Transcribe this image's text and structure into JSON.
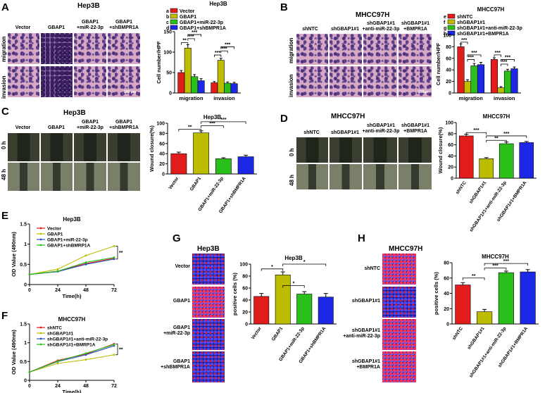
{
  "panels": {
    "A": {
      "letter": "A",
      "title": "Hep3B",
      "cols": [
        "Vector",
        "GBAP1",
        "GBAP1\n+miR-22-3p",
        "GBAP1\n+shBMPR1A"
      ],
      "rows": [
        "migration",
        "invasion"
      ],
      "scale": "100 μm"
    },
    "B": {
      "letter": "B",
      "title": "MHCC97H",
      "cols": [
        "shNTC",
        "shGBAP1#1",
        "shGBAP1#1\n+anti-miR-22-3p",
        "shGBAP1#1\n+BMPR1A"
      ],
      "rows": [
        "migration",
        "invasion"
      ],
      "scale": "100μm"
    },
    "C": {
      "letter": "C",
      "title": "Hep3B",
      "cols": [
        "Vector",
        "GBAP1",
        "GBAP1\n+miR-22-3p",
        "GBAP1\n+shBMPR1A"
      ],
      "rows": [
        "0 h",
        "48 h"
      ]
    },
    "D": {
      "letter": "D",
      "title": "MHCC97H",
      "cols": [
        "shNTC",
        "shGBAP1#1",
        "shGBAP1#1\n+anti-miR-22-3p",
        "shGBAP1#1\n+BMPR1A"
      ],
      "rows": [
        "0 h",
        "48 h"
      ]
    },
    "E": {
      "letter": "E"
    },
    "F": {
      "letter": "F"
    },
    "G": {
      "letter": "G",
      "title": "Hep3B",
      "rows": [
        "Vector",
        "GBAP1",
        "GBAP1\n+miR-22-3p",
        "GBAP1\n+shBMPR1A"
      ]
    },
    "H": {
      "letter": "H",
      "title": "MHCC97H",
      "rows": [
        "shNTC",
        "shGBAP1#1",
        "shGBAP1#1\n+anti-miR-22-3p",
        "shGBAP1#1\n+BMPR1A"
      ]
    }
  },
  "chart_data": [
    {
      "id": "A",
      "type": "bar",
      "title": "Hep3B",
      "ylabel": "Cell number/HPF",
      "ylim": [
        0,
        150
      ],
      "yticks": [
        0,
        50,
        100,
        150
      ],
      "categories": [
        "migration",
        "invasion"
      ],
      "legend": [
        {
          "key": "a",
          "name": "Vector"
        },
        {
          "key": "b",
          "name": "GBAP1"
        },
        {
          "key": "c",
          "name": "GBAP1+miR-22-3p"
        },
        {
          "key": "d",
          "name": "GBAP1+shBMPR1A"
        }
      ],
      "series": [
        {
          "name": "Vector",
          "values": [
            50,
            25
          ],
          "err": [
            5,
            3
          ]
        },
        {
          "name": "GBAP1",
          "values": [
            110,
            80
          ],
          "err": [
            8,
            5
          ]
        },
        {
          "name": "GBAP1+miR-22-3p",
          "values": [
            40,
            24
          ],
          "err": [
            5,
            3
          ]
        },
        {
          "name": "GBAP1+shBMPR1A",
          "values": [
            30,
            23
          ],
          "err": [
            5,
            3
          ]
        }
      ],
      "sig": [
        "**",
        "***",
        "***",
        "***",
        "***",
        "***"
      ]
    },
    {
      "id": "B",
      "type": "bar",
      "title": "MHCC97H",
      "ylabel": "Cell number/HPF",
      "ylim": [
        0,
        100
      ],
      "yticks": [
        0,
        20,
        40,
        60,
        80,
        100
      ],
      "categories": [
        "migration",
        "invasion"
      ],
      "legend": [
        {
          "key": "e",
          "name": "shNTC"
        },
        {
          "key": "f",
          "name": "shGBAP1#1"
        },
        {
          "key": "g",
          "name": "shGBAP1#1+anti-miR-22-3p"
        },
        {
          "key": "h",
          "name": "shGBAP1#1+BMPR1A"
        }
      ],
      "series": [
        {
          "name": "shNTC",
          "values": [
            80,
            58
          ],
          "err": [
            5,
            3
          ]
        },
        {
          "name": "shGBAP1#1",
          "values": [
            20,
            9
          ],
          "err": [
            3,
            2
          ]
        },
        {
          "name": "shGBAP1#1+anti-miR-22-3p",
          "values": [
            47,
            38
          ],
          "err": [
            4,
            3
          ]
        },
        {
          "name": "shGBAP1#1+BMPR1A",
          "values": [
            49,
            42
          ],
          "err": [
            4,
            3
          ]
        }
      ],
      "sig": [
        "***",
        "***",
        "***",
        "***",
        "***",
        "***"
      ]
    },
    {
      "id": "C",
      "type": "bar",
      "title": "Hep3B",
      "ylabel": "Wound closure(%)",
      "ylim": [
        0,
        100
      ],
      "yticks": [
        0,
        20,
        40,
        60,
        80,
        100
      ],
      "categories": [
        "Vector",
        "GBAP1",
        "GBAP1+miR-22-3p",
        "GBAP1+shBMPR1A"
      ],
      "values": [
        40,
        81,
        30,
        34
      ],
      "err": [
        3,
        4,
        2,
        3
      ],
      "sig": [
        "**",
        "***",
        "***"
      ]
    },
    {
      "id": "D",
      "type": "bar",
      "title": "MHCC97H",
      "ylabel": "Wound closure(%)",
      "ylim": [
        0,
        100
      ],
      "yticks": [
        0,
        20,
        40,
        60,
        80,
        100
      ],
      "categories": [
        "shNTC",
        "shGBAP1#1",
        "shGBAP1#1+anti-miR-22-3p",
        "shGBAP1#1+BMPR1A"
      ],
      "values": [
        76,
        35,
        62,
        64
      ],
      "err": [
        3,
        2,
        3,
        2
      ],
      "sig": [
        "***",
        "**",
        "***"
      ]
    },
    {
      "id": "E",
      "type": "line",
      "title": "Hep3B",
      "xlabel": "Time(h)",
      "ylabel": "OD Value (490nm)",
      "x": [
        0,
        24,
        48,
        72
      ],
      "ylim": [
        0,
        1.5
      ],
      "yticks": [
        0,
        0.5,
        1.0,
        1.5
      ],
      "series": [
        {
          "name": "Vector",
          "values": [
            0.25,
            0.33,
            0.52,
            0.65
          ]
        },
        {
          "name": "GBAP1",
          "values": [
            0.25,
            0.38,
            0.72,
            0.95
          ]
        },
        {
          "name": "GBAP1+miR-22-3p",
          "values": [
            0.25,
            0.32,
            0.5,
            0.63
          ]
        },
        {
          "name": "GBAP1+shBMRP1A",
          "values": [
            0.25,
            0.33,
            0.55,
            0.67
          ]
        }
      ],
      "sig": [
        "**"
      ]
    },
    {
      "id": "F",
      "type": "line",
      "title": "MHCC97H",
      "xlabel": "Time(h)",
      "ylabel": "OD Value (490nm)",
      "x": [
        0,
        24,
        48,
        72
      ],
      "ylim": [
        0,
        1.5
      ],
      "yticks": [
        0,
        0.5,
        1.0,
        1.5
      ],
      "series": [
        {
          "name": "shNTC",
          "values": [
            0.22,
            0.53,
            0.7,
            0.97
          ]
        },
        {
          "name": "shGBAP1#1",
          "values": [
            0.22,
            0.45,
            0.55,
            0.68
          ]
        },
        {
          "name": "shGBAP1#1+anti-miR-22-3p",
          "values": [
            0.22,
            0.5,
            0.68,
            0.92
          ]
        },
        {
          "name": "shGBAP1#1+BMRP1A",
          "values": [
            0.22,
            0.51,
            0.72,
            0.95
          ]
        }
      ],
      "sig": [
        "**"
      ]
    },
    {
      "id": "G",
      "type": "bar",
      "title": "Hep3B",
      "ylabel": "positive cells (%)",
      "ylim": [
        0,
        100
      ],
      "yticks": [
        0,
        20,
        40,
        60,
        80,
        100
      ],
      "categories": [
        "Vector",
        "GBAP1",
        "GBAP1+miR-22-3p",
        "GBAP1+shBMPR1A"
      ],
      "values": [
        46,
        82,
        50,
        45
      ],
      "err": [
        5,
        5,
        4,
        6
      ],
      "sig": [
        "*",
        "*",
        "*"
      ]
    },
    {
      "id": "H",
      "type": "bar",
      "title": "MHCC97H",
      "ylabel": "positive cells (%)",
      "ylim": [
        0,
        80
      ],
      "yticks": [
        0,
        20,
        40,
        60,
        80
      ],
      "categories": [
        "shNTC",
        "shGBAP1#1",
        "shGBAP1#1+anti-miR-22-3p",
        "shGBAP1#1+BMPR1A"
      ],
      "values": [
        51,
        16,
        67,
        68
      ],
      "err": [
        3,
        3,
        2,
        3
      ],
      "sig": [
        "**",
        "***",
        "***"
      ]
    }
  ],
  "colors": {
    "red": "#e21b1b",
    "yellow": "#bdbd00",
    "green": "#2bbf1c",
    "blue": "#1d28e6",
    "purple": "#2f4fbf"
  }
}
